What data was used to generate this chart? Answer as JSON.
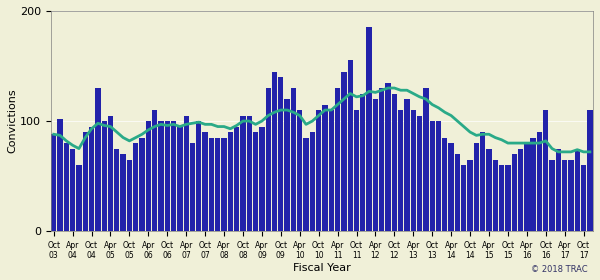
{
  "xlabel": "Fiscal Year",
  "ylabel": "Convictions",
  "ylim": [
    0,
    200
  ],
  "yticks": [
    0,
    100,
    200
  ],
  "background_color": "#f0f0d8",
  "bar_color": "#2222aa",
  "line_color": "#2aaa88",
  "copyright": "© 2018 TRAC",
  "tick_labels": [
    "Oct\n03",
    "Apr\n04",
    "Oct\n04",
    "Apr\n05",
    "Oct\n05",
    "Apr\n06",
    "Oct\n06",
    "Apr\n07",
    "Oct\n07",
    "Apr\n08",
    "Oct\n08",
    "Apr\n09",
    "Oct\n09",
    "Apr\n10",
    "Oct\n10",
    "Apr\n11",
    "Oct\n11",
    "Apr\n12",
    "Oct\n12",
    "Apr\n13",
    "Oct\n13",
    "Apr\n14",
    "Oct\n14",
    "Apr\n15",
    "Oct\n15",
    "Apr\n16",
    "Oct\n16",
    "Apr\n17",
    "Oct\n17"
  ],
  "bar_values": [
    88,
    102,
    80,
    75,
    60,
    90,
    95,
    130,
    100,
    105,
    75,
    70,
    65,
    80,
    85,
    100,
    110,
    100,
    100,
    100,
    95,
    105,
    80,
    100,
    90,
    85,
    85,
    85,
    90,
    95,
    105,
    105,
    90,
    95,
    130,
    145,
    140,
    120,
    130,
    110,
    85,
    90,
    110,
    115,
    110,
    130,
    145,
    155,
    110,
    125,
    185,
    120,
    130,
    135,
    125,
    110,
    120,
    110,
    105,
    130,
    100,
    100,
    85,
    80,
    70,
    60,
    65,
    80,
    90,
    75,
    65,
    60,
    60,
    70,
    75,
    80,
    85,
    90,
    110,
    65,
    75,
    65,
    65,
    75,
    60,
    110
  ],
  "line_values": [
    88,
    87,
    82,
    78,
    75,
    85,
    93,
    98,
    96,
    95,
    90,
    85,
    82,
    85,
    88,
    92,
    95,
    97,
    96,
    97,
    95,
    97,
    98,
    99,
    97,
    97,
    95,
    95,
    93,
    96,
    100,
    100,
    97,
    100,
    105,
    108,
    110,
    110,
    108,
    105,
    97,
    100,
    105,
    110,
    110,
    115,
    120,
    125,
    122,
    123,
    127,
    126,
    128,
    130,
    130,
    128,
    128,
    125,
    122,
    120,
    115,
    112,
    108,
    105,
    100,
    95,
    90,
    87,
    88,
    88,
    85,
    83,
    80,
    80,
    80,
    80,
    80,
    80,
    82,
    75,
    72,
    72,
    72,
    74,
    72,
    72
  ]
}
